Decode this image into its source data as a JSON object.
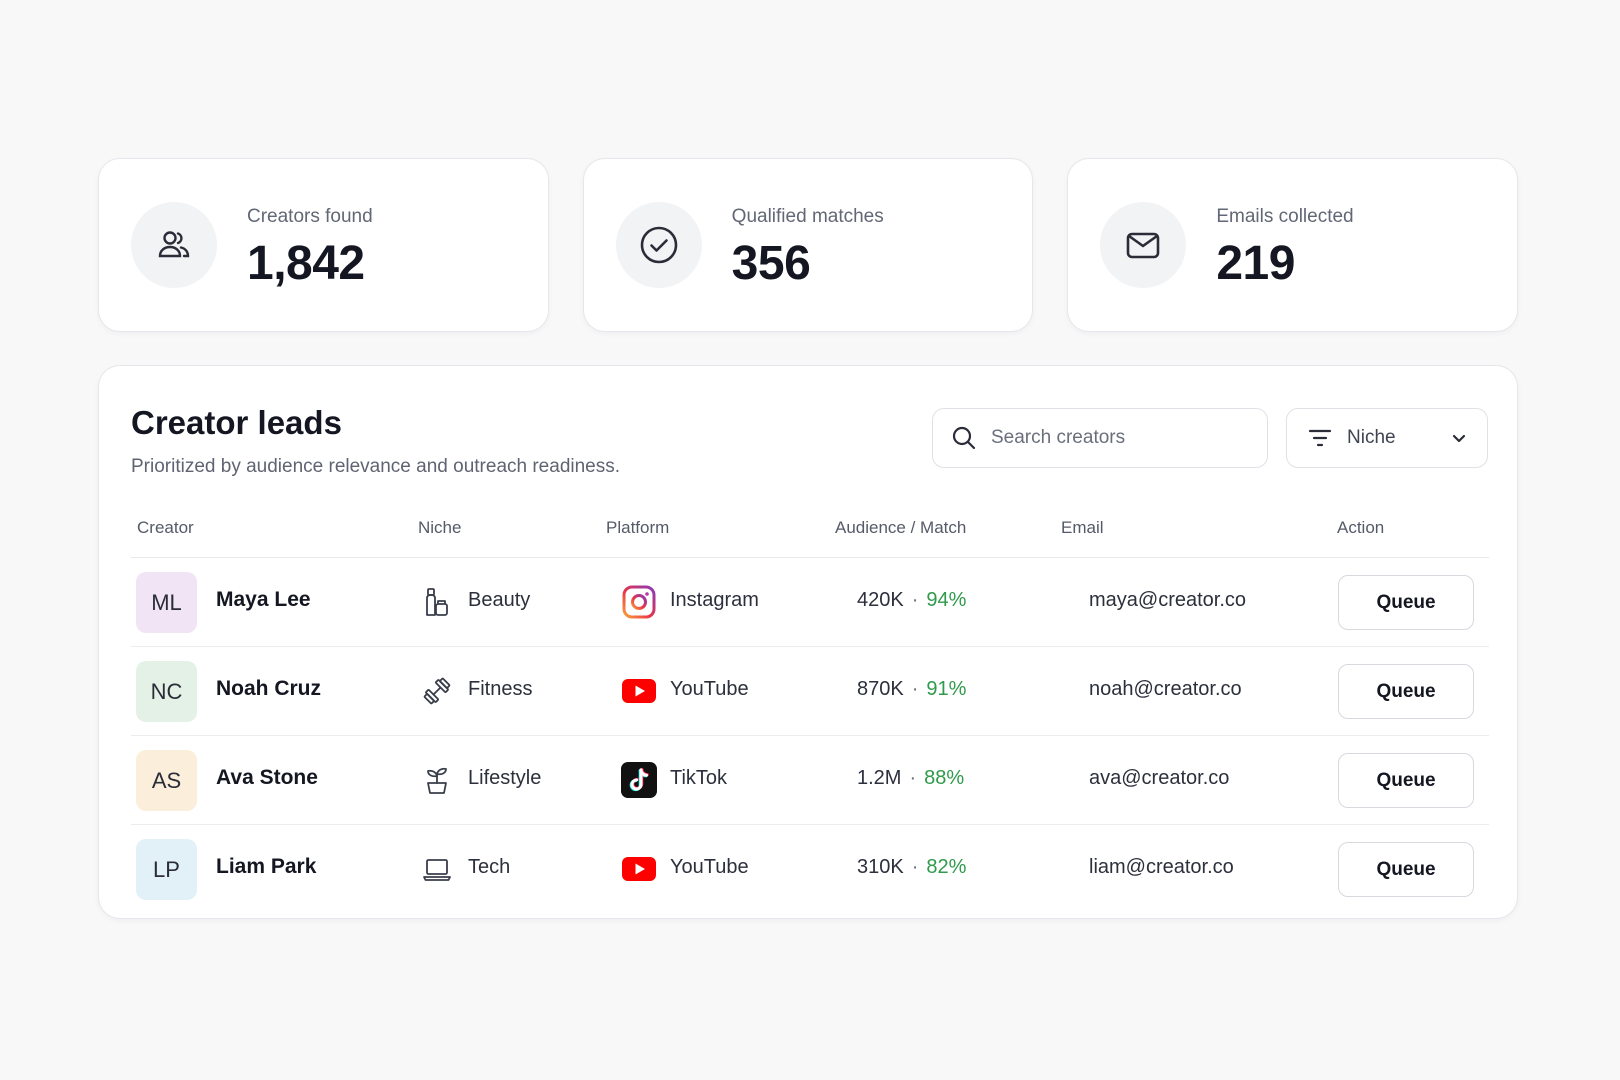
{
  "stats": [
    {
      "label": "Creators found",
      "value": "1,842",
      "icon": "users-icon"
    },
    {
      "label": "Qualified matches",
      "value": "356",
      "icon": "check-circle-icon"
    },
    {
      "label": "Emails collected",
      "value": "219",
      "icon": "mail-icon"
    }
  ],
  "leads": {
    "title": "Creator leads",
    "subtitle": "Prioritized by audience relevance and outreach readiness.",
    "search_placeholder": "Search creators",
    "filter_label": "Niche",
    "columns": [
      "Creator",
      "Niche",
      "Platform",
      "Audience / Match",
      "Email",
      "Action"
    ],
    "rows": [
      {
        "initials": "ML",
        "name": "Maya Lee",
        "niche": "Beauty",
        "niche_icon": "beauty-bottle-icon",
        "platform": "Instagram",
        "platform_icon": "instagram-icon",
        "audience": "420K",
        "match": "94%",
        "email": "maya@creator.co",
        "action": "Queue",
        "avatar_color": "#f1e4f5"
      },
      {
        "initials": "NC",
        "name": "Noah Cruz",
        "niche": "Fitness",
        "niche_icon": "dumbbell-icon",
        "platform": "YouTube",
        "platform_icon": "youtube-icon",
        "audience": "870K",
        "match": "91%",
        "email": "noah@creator.co",
        "action": "Queue",
        "avatar_color": "#e4f1e6"
      },
      {
        "initials": "AS",
        "name": "Ava Stone",
        "niche": "Lifestyle",
        "niche_icon": "plant-icon",
        "platform": "TikTok",
        "platform_icon": "tiktok-icon",
        "audience": "1.2M",
        "match": "88%",
        "email": "ava@creator.co",
        "action": "Queue",
        "avatar_color": "#fbefdc"
      },
      {
        "initials": "LP",
        "name": "Liam Park",
        "niche": "Tech",
        "niche_icon": "laptop-icon",
        "platform": "YouTube",
        "platform_icon": "youtube-icon",
        "audience": "310K",
        "match": "82%",
        "email": "liam@creator.co",
        "action": "Queue",
        "avatar_color": "#e2f0f8"
      }
    ]
  },
  "colors": {
    "match_green": "#2f9a4b",
    "youtube_red": "#ff0000",
    "text_dark": "#141722"
  }
}
